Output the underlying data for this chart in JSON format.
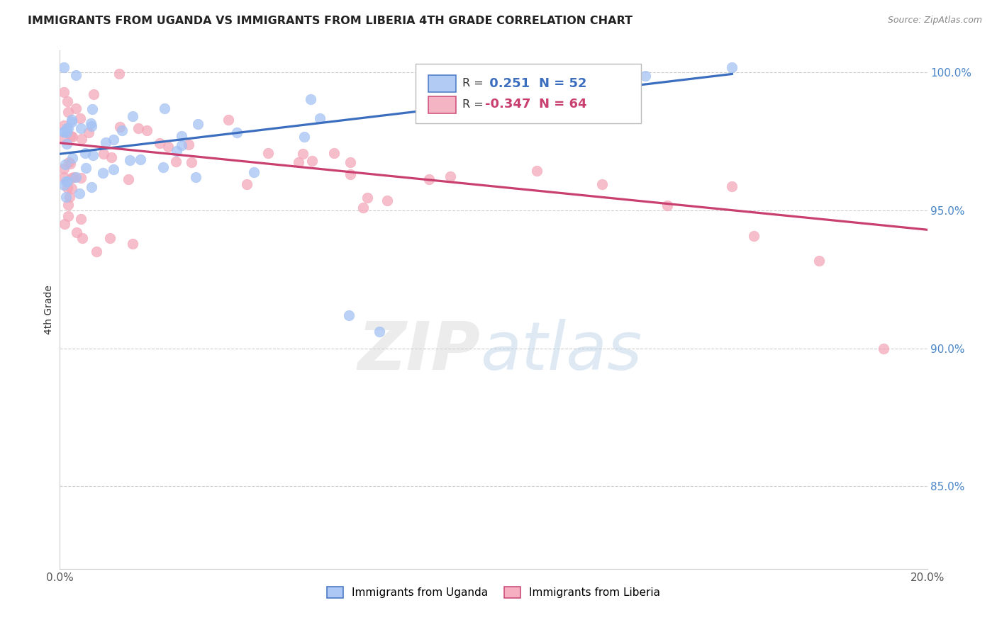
{
  "title": "IMMIGRANTS FROM UGANDA VS IMMIGRANTS FROM LIBERIA 4TH GRADE CORRELATION CHART",
  "source": "Source: ZipAtlas.com",
  "ylabel": "4th Grade",
  "xlim": [
    0.0,
    0.2
  ],
  "ylim": [
    0.82,
    1.008
  ],
  "x_tick_positions": [
    0.0,
    0.04,
    0.08,
    0.12,
    0.16,
    0.2
  ],
  "x_tick_labels": [
    "0.0%",
    "",
    "",
    "",
    "",
    "20.0%"
  ],
  "y_ticks_right": [
    0.85,
    0.9,
    0.95,
    1.0
  ],
  "y_tick_labels_right": [
    "85.0%",
    "90.0%",
    "95.0%",
    "100.0%"
  ],
  "uganda_color": "#a4c2f4",
  "liberia_color": "#f4a7b9",
  "uganda_line_color": "#3c6ebf",
  "liberia_line_color": "#c94070",
  "uganda_R": 0.251,
  "uganda_N": 52,
  "liberia_R": -0.347,
  "liberia_N": 64,
  "uganda_line_x0": 0.0,
  "uganda_line_y0": 0.9705,
  "uganda_line_x1": 0.155,
  "uganda_line_y1": 0.9995,
  "liberia_line_x0": 0.0,
  "liberia_line_y0": 0.9745,
  "liberia_line_x1": 0.2,
  "liberia_line_y1": 0.943
}
